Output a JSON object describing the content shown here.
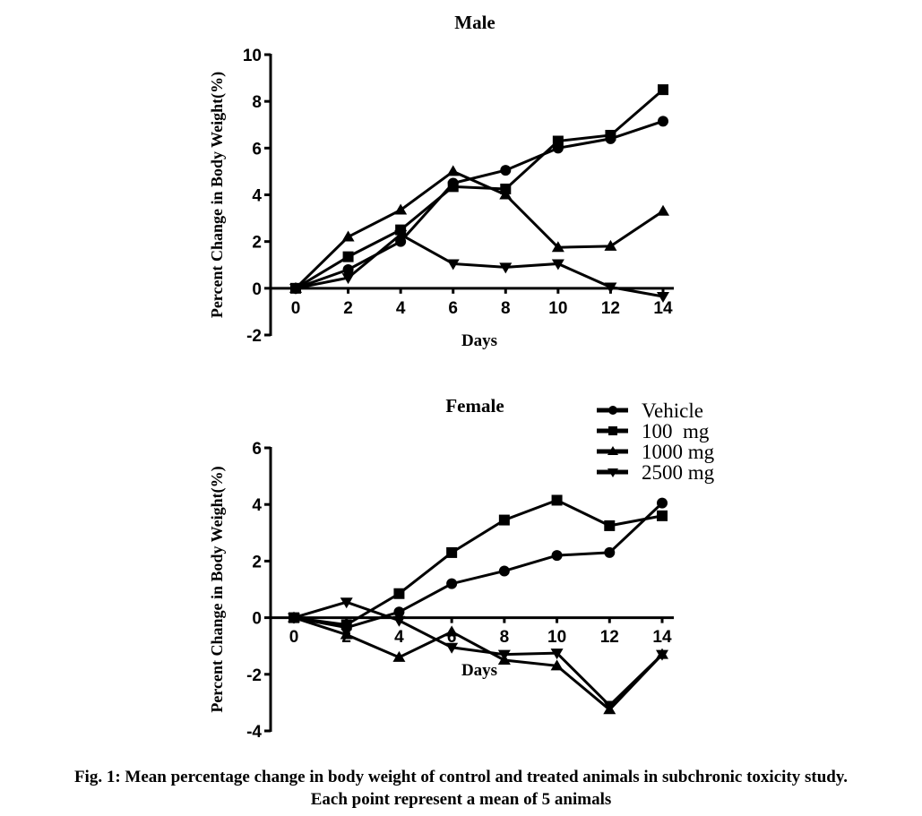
{
  "chart_data": [
    {
      "type": "line",
      "title": "Male",
      "xlabel": "Days",
      "ylabel": "Percent Change in Body Weight(%)",
      "x": [
        0,
        2,
        4,
        6,
        8,
        10,
        12,
        14
      ],
      "xticks": [
        "0",
        "2",
        "4",
        "6",
        "8",
        "10",
        "12",
        "14"
      ],
      "ylim": [
        -2,
        10
      ],
      "yticks": [
        "-2",
        "0",
        "2",
        "4",
        "6",
        "8",
        "10"
      ],
      "series": [
        {
          "name": "Vehicle",
          "marker": "circle",
          "values": [
            0,
            0.8,
            2.0,
            4.5,
            5.05,
            6.0,
            6.4,
            7.15
          ]
        },
        {
          "name": "100  mg",
          "marker": "square",
          "values": [
            0,
            1.35,
            2.5,
            4.35,
            4.25,
            6.3,
            6.55,
            8.5
          ]
        },
        {
          "name": "1000 mg",
          "marker": "triangle-up",
          "values": [
            0,
            2.2,
            3.35,
            5.0,
            4.0,
            1.75,
            1.8,
            3.3
          ]
        },
        {
          "name": "2500 mg",
          "marker": "triangle-down",
          "values": [
            0,
            0.45,
            2.3,
            1.05,
            0.9,
            1.05,
            0.05,
            -0.35
          ]
        }
      ]
    },
    {
      "type": "line",
      "title": "Female",
      "xlabel": "Days",
      "ylabel": "Percent Change in Body Weight(%)",
      "x": [
        0,
        2,
        4,
        6,
        8,
        10,
        12,
        14
      ],
      "xticks": [
        "0",
        "2",
        "4",
        "6",
        "8",
        "10",
        "12",
        "14"
      ],
      "ylim": [
        -4,
        6
      ],
      "yticks": [
        "-4",
        "-2",
        "0",
        "2",
        "4",
        "6"
      ],
      "legend": "top-right",
      "series": [
        {
          "name": "Vehicle",
          "marker": "circle",
          "values": [
            0,
            -0.35,
            0.2,
            1.2,
            1.65,
            2.2,
            2.3,
            4.05
          ]
        },
        {
          "name": "100  mg",
          "marker": "square",
          "values": [
            0,
            -0.25,
            0.85,
            2.3,
            3.45,
            4.15,
            3.25,
            3.6
          ]
        },
        {
          "name": "1000 mg",
          "marker": "triangle-up",
          "values": [
            0,
            -0.6,
            -1.4,
            -0.5,
            -1.5,
            -1.7,
            -3.25,
            -1.3
          ]
        },
        {
          "name": "2500 mg",
          "marker": "triangle-down",
          "values": [
            0,
            0.55,
            -0.1,
            -1.05,
            -1.3,
            -1.25,
            -3.1,
            -1.3
          ]
        }
      ]
    }
  ],
  "caption": {
    "line1": "Fig. 1: Mean percentage change in body weight of control and treated animals in subchronic toxicity study.",
    "line2": "Each point represent a mean of 5 animals"
  }
}
